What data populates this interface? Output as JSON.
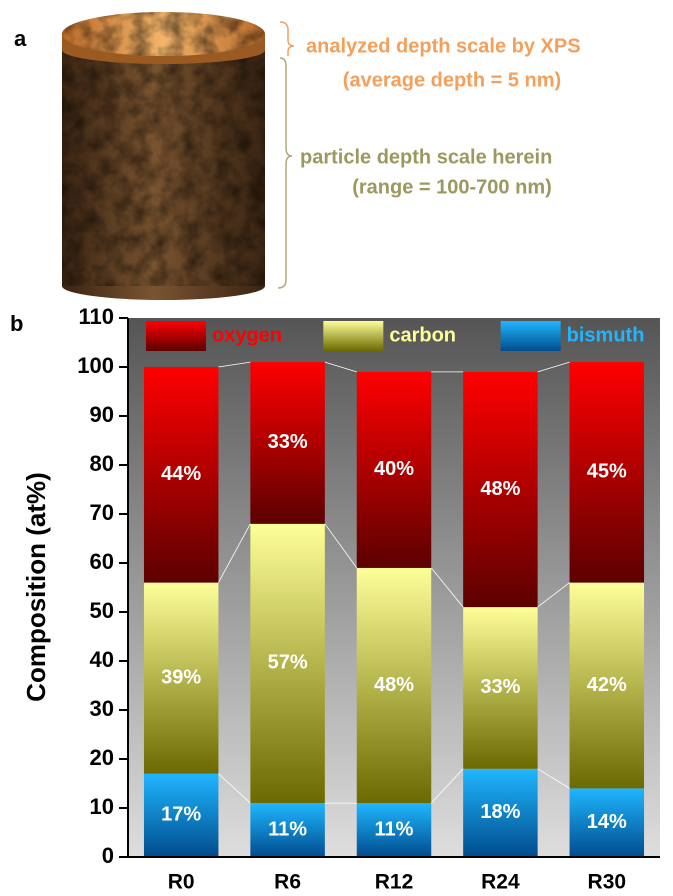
{
  "panel_a": {
    "label": "a",
    "xps_depth": "analyzed depth scale by XPS",
    "xps_depth_value": "(average depth = 5 nm)",
    "particle_depth": "particle depth scale herein",
    "particle_depth_range": "(range = 100-700 nm)"
  },
  "chart_data": {
    "type": "stacked_bar",
    "panel_label": "b",
    "ylabel": "Composition (at%)",
    "categories": [
      "R0",
      "R6",
      "R12",
      "R24",
      "R30"
    ],
    "series": [
      {
        "name": "oxygen",
        "color": [
          "#ff0000",
          "#5c0000"
        ],
        "values": [
          44,
          33,
          40,
          48,
          45
        ],
        "value_labels": [
          "44%",
          "33%",
          "40%",
          "48%",
          "45%"
        ]
      },
      {
        "name": "carbon",
        "color": [
          "#ffff99",
          "#6b6a00"
        ],
        "values": [
          39,
          57,
          48,
          33,
          42
        ],
        "value_labels": [
          "39%",
          "57%",
          "48%",
          "33%",
          "42%"
        ]
      },
      {
        "name": "bismuth",
        "color": [
          "#20b6ff",
          "#004c8c"
        ],
        "values": [
          17,
          11,
          11,
          18,
          14
        ],
        "value_labels": [
          "17%",
          "11%",
          "11%",
          "18%",
          "14%"
        ]
      }
    ],
    "ylim": [
      0,
      110
    ],
    "yticks": [
      0,
      10,
      20,
      30,
      40,
      50,
      60,
      70,
      80,
      90,
      100,
      110
    ],
    "legend": "top"
  }
}
